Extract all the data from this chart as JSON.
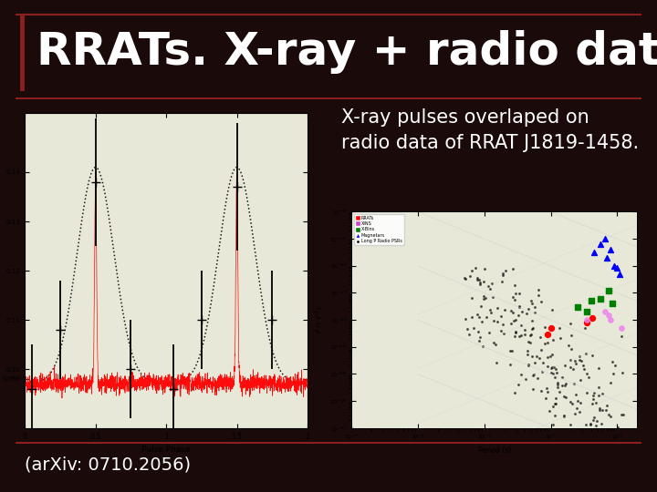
{
  "background_color": "#1a0a0a",
  "title": "RRATs. X-ray + radio data",
  "title_color": "#ffffff",
  "title_fontsize": 36,
  "title_bar_color": "#8b2020",
  "subtitle_text": "X-ray pulses overlaped on\nradio data of RRAT J1819-1458.",
  "subtitle_color": "#ffffff",
  "subtitle_fontsize": 15,
  "footer_text": "(arXiv: 0710.2056)",
  "footer_color": "#ffffff",
  "footer_fontsize": 14,
  "divider_color": "#8b2020"
}
